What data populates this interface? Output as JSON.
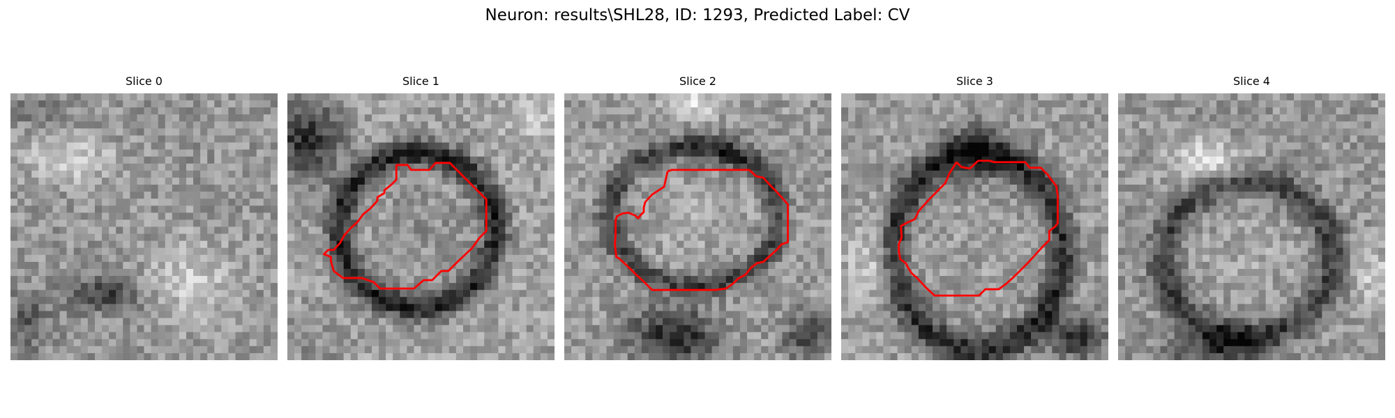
{
  "figure": {
    "title": "Neuron: results\\SHL28, ID: 1293, Predicted Label: CV",
    "contour_color": "#ff0000",
    "colormap": "grayscale",
    "panels": [
      {
        "label": "Slice 0",
        "has_contour": false
      },
      {
        "label": "Slice 1",
        "has_contour": true
      },
      {
        "label": "Slice 2",
        "has_contour": true
      },
      {
        "label": "Slice 3",
        "has_contour": true
      },
      {
        "label": "Slice 4",
        "has_contour": false
      }
    ]
  }
}
